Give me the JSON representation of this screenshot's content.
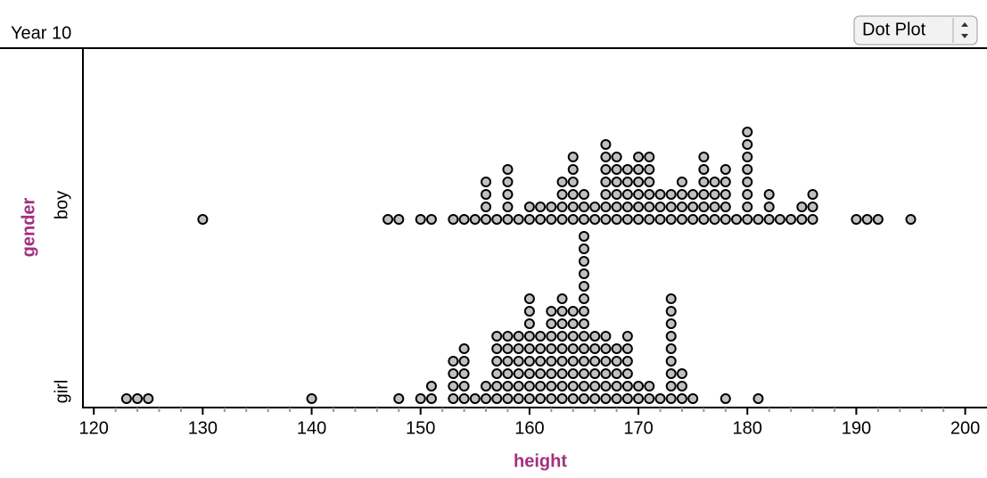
{
  "view_menu": "Dot Plot",
  "chart_data": {
    "type": "dotplot",
    "title": "Year 10",
    "xlabel": "height",
    "ylabel": "gender",
    "xlim": [
      119,
      202
    ],
    "xticks": [
      120,
      130,
      140,
      150,
      160,
      170,
      180,
      190,
      200
    ],
    "xminorticks": [
      122,
      124,
      126,
      128,
      132,
      134,
      136,
      138,
      142,
      144,
      146,
      148,
      152,
      154,
      156,
      158,
      162,
      164,
      166,
      168,
      172,
      174,
      176,
      178,
      182,
      184,
      186,
      188,
      192,
      194,
      196,
      198
    ],
    "color": "#c0c0c0",
    "series": [
      {
        "name": "boy",
        "x": [
          130,
          147,
          148,
          150,
          151,
          153,
          154,
          155,
          156,
          157,
          158,
          159,
          160,
          161,
          162,
          163,
          164,
          165,
          166,
          167,
          168,
          169,
          170,
          171,
          172,
          173,
          174,
          175,
          176,
          177,
          178,
          179,
          180,
          181,
          182,
          183,
          184,
          185,
          186,
          190,
          191,
          192,
          195
        ],
        "counts": [
          1,
          1,
          1,
          1,
          1,
          1,
          1,
          1,
          4,
          1,
          5,
          1,
          2,
          2,
          2,
          4,
          6,
          3,
          2,
          7,
          6,
          5,
          6,
          6,
          3,
          3,
          4,
          3,
          6,
          4,
          5,
          1,
          8,
          1,
          3,
          1,
          1,
          2,
          3,
          1,
          1,
          1,
          1
        ]
      },
      {
        "name": "girl",
        "x": [
          123,
          124,
          125,
          140,
          148,
          150,
          151,
          153,
          154,
          155,
          156,
          157,
          158,
          159,
          160,
          161,
          162,
          163,
          164,
          165,
          166,
          167,
          168,
          169,
          170,
          171,
          172,
          173,
          174,
          175,
          178,
          181
        ],
        "counts": [
          1,
          1,
          1,
          1,
          1,
          1,
          2,
          4,
          5,
          1,
          2,
          6,
          6,
          6,
          9,
          6,
          8,
          9,
          8,
          14,
          6,
          6,
          5,
          6,
          2,
          2,
          1,
          9,
          3,
          1,
          1,
          1
        ]
      }
    ]
  }
}
